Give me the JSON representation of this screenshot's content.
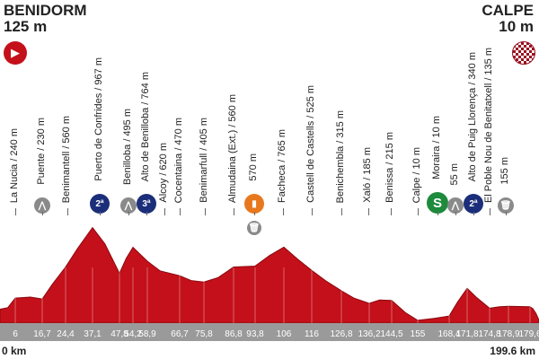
{
  "start": {
    "name": "BENIDORM",
    "elev": "125 m"
  },
  "finish": {
    "name": "CALPE",
    "elev": "10 m"
  },
  "colors": {
    "profile": "#c4101a",
    "axis_band": "#9a9a9a",
    "climb": "#1b2e7a",
    "sprint": "#1e8a3c",
    "feed": "#e8781e",
    "gray": "#8a8a8a"
  },
  "waypoints": [
    {
      "label": "La Nucia / 240 m",
      "icon": ""
    },
    {
      "label": "Puente / 230 m",
      "icon": "uncategorized-climb-icon"
    },
    {
      "label": "Benimantell / 560 m",
      "icon": ""
    },
    {
      "label": "Puerto de Confrides / 967 m",
      "icon": "cat2-climb-icon",
      "cat": "2ª"
    },
    {
      "label": "Benilloba / 495 m",
      "icon": "uncategorized-climb-icon"
    },
    {
      "label": "Alto de Benilloba / 764 m",
      "icon": "cat3-climb-icon",
      "cat": "3ª"
    },
    {
      "label": "Alcoy / 620 m",
      "icon": ""
    },
    {
      "label": "Cocentaina / 470 m",
      "icon": ""
    },
    {
      "label": "Benimarfull / 405 m",
      "icon": ""
    },
    {
      "label": "Almudaina (Ext.) / 560 m",
      "icon": ""
    },
    {
      "label": "570 m",
      "icon": "feed-zone-icon"
    },
    {
      "label": "Facheca / 765 m",
      "icon": ""
    },
    {
      "label": "Castell de Castells / 525 m",
      "icon": ""
    },
    {
      "label": "Benichembla / 315 m",
      "icon": ""
    },
    {
      "label": "Xaló / 185 m",
      "icon": ""
    },
    {
      "label": "Benissa / 215 m",
      "icon": ""
    },
    {
      "label": "Calpe / 10 m",
      "icon": ""
    },
    {
      "label": "Moraira / 10 m",
      "icon": "sprint-icon",
      "cat": "S"
    },
    {
      "label": "55 m",
      "icon": "uncategorized-climb-icon"
    },
    {
      "label": "Alto de Puig Llorença / 340 m",
      "icon": "cat2-climb-icon",
      "cat": "2ª"
    },
    {
      "label": "El Poble Nou de Benitatxell / 135 m",
      "icon": ""
    },
    {
      "label": "155 m",
      "icon": "waste-zone-icon"
    }
  ],
  "chart_data": {
    "type": "area",
    "xlabel": "",
    "ylabel": "",
    "x_start_label": "0 km",
    "x_end_label": "199.6 km",
    "xlim": [
      0,
      199.6
    ],
    "tick_labels": [
      "6",
      "16,7",
      "24,4",
      "37,1",
      "47,8",
      "54,2",
      "58,9",
      "66,7",
      "75,8",
      "86,8",
      "93,8",
      "106",
      "116",
      "126,8",
      "136,2",
      "144,5",
      "155",
      "168,4",
      "171,8",
      "174,8",
      "178,9",
      "179,6"
    ],
    "profile": [
      [
        0,
        125
      ],
      [
        3,
        140
      ],
      [
        6,
        240
      ],
      [
        12,
        250
      ],
      [
        16.7,
        230
      ],
      [
        20,
        380
      ],
      [
        24.4,
        560
      ],
      [
        30,
        750
      ],
      [
        37.1,
        967
      ],
      [
        42,
        800
      ],
      [
        47.8,
        495
      ],
      [
        51,
        650
      ],
      [
        54.2,
        764
      ],
      [
        58.9,
        620
      ],
      [
        62,
        520
      ],
      [
        66.7,
        470
      ],
      [
        71,
        420
      ],
      [
        75.8,
        405
      ],
      [
        81,
        450
      ],
      [
        86.8,
        560
      ],
      [
        93.8,
        570
      ],
      [
        100,
        680
      ],
      [
        106,
        765
      ],
      [
        111,
        640
      ],
      [
        116,
        525
      ],
      [
        121,
        420
      ],
      [
        126.8,
        315
      ],
      [
        131,
        240
      ],
      [
        136.2,
        185
      ],
      [
        140,
        220
      ],
      [
        144.5,
        215
      ],
      [
        150,
        90
      ],
      [
        155,
        10
      ],
      [
        162,
        30
      ],
      [
        168.4,
        55
      ],
      [
        170,
        200
      ],
      [
        171.8,
        340
      ],
      [
        173,
        250
      ],
      [
        174.8,
        135
      ],
      [
        177,
        150
      ],
      [
        178.9,
        155
      ],
      [
        179.6,
        150
      ],
      [
        186,
        130
      ],
      [
        193,
        80
      ],
      [
        199.6,
        10
      ]
    ]
  }
}
